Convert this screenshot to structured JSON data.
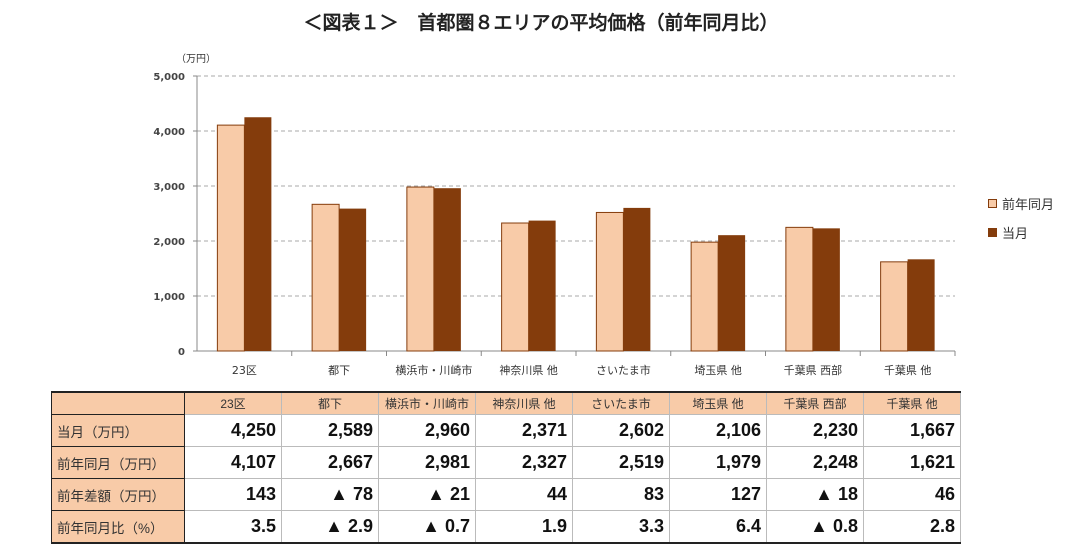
{
  "chart_data": {
    "type": "bar",
    "title": "＜図表１＞　首都圏８エリアの平均価格（前年同月比）",
    "unit_label": "（万円）",
    "categories": [
      "23区",
      "都下",
      "横浜市・川崎市",
      "神奈川県 他",
      "さいたま市",
      "埼玉県 他",
      "千葉県 西部",
      "千葉県 他"
    ],
    "series": [
      {
        "name": "前年同月",
        "values": [
          4107,
          2667,
          2981,
          2327,
          2519,
          1979,
          2248,
          1621
        ],
        "color": "#f8cba8"
      },
      {
        "name": "当月",
        "values": [
          4250,
          2589,
          2960,
          2371,
          2602,
          2106,
          2230,
          1667
        ],
        "color": "#843c0c"
      }
    ],
    "ylim": [
      0,
      5000
    ],
    "yticks": [
      "0",
      "1,000",
      "2,000",
      "3,000",
      "4,000",
      "5,000"
    ],
    "grid": true,
    "legend": "right"
  },
  "table": {
    "rows": [
      {
        "label": "当月（万円）",
        "cells": [
          "4,250",
          "2,589",
          "2,960",
          "2,371",
          "2,602",
          "2,106",
          "2,230",
          "1,667"
        ]
      },
      {
        "label": "前年同月（万円）",
        "cells": [
          "4,107",
          "2,667",
          "2,981",
          "2,327",
          "2,519",
          "1,979",
          "2,248",
          "1,621"
        ]
      },
      {
        "label": "前年差額（万円）",
        "cells": [
          "143",
          "▲ 78",
          "▲ 21",
          "44",
          "83",
          "127",
          "▲ 18",
          "46"
        ]
      },
      {
        "label": "前年同月比（%）",
        "cells": [
          "3.5",
          "▲ 2.9",
          "▲ 0.7",
          "1.9",
          "3.3",
          "6.4",
          "▲ 0.8",
          "2.8"
        ]
      }
    ]
  }
}
